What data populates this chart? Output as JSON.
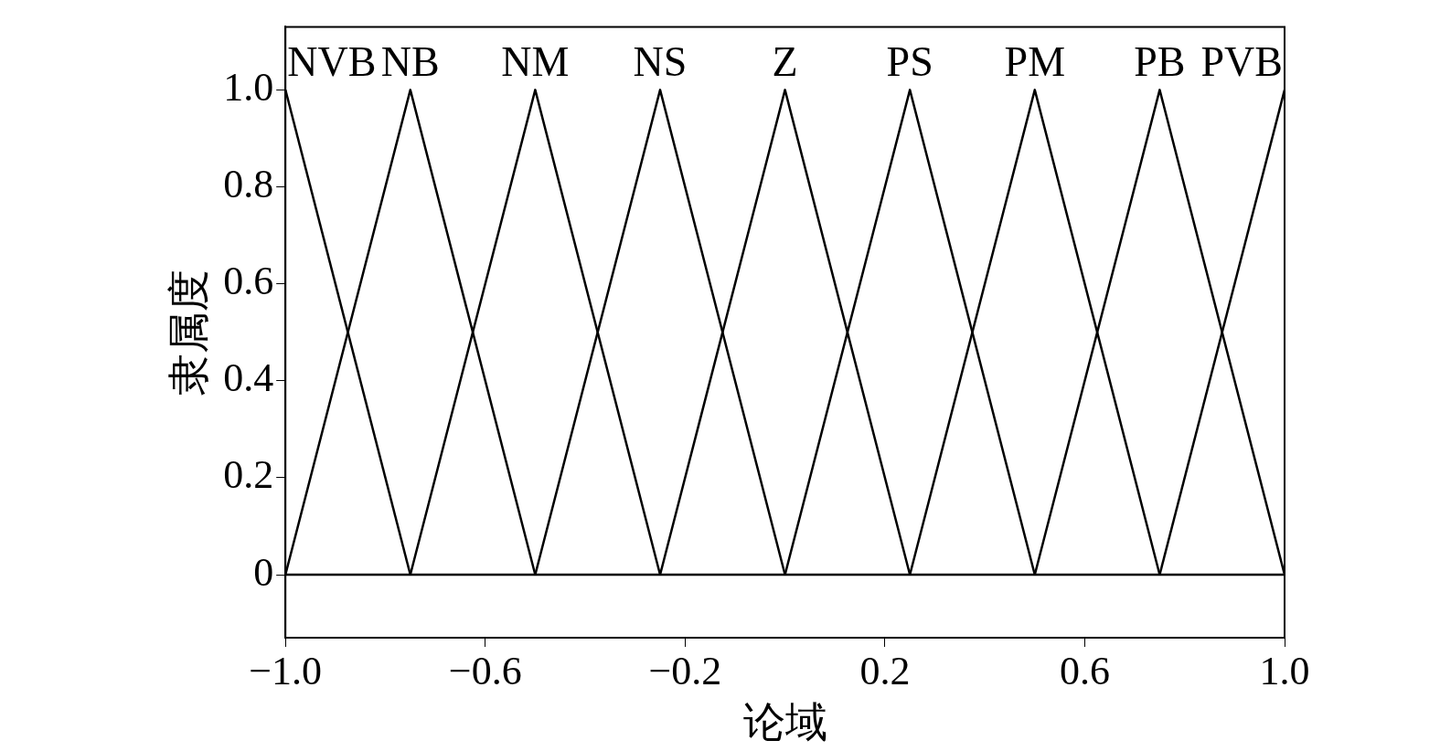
{
  "chart_data": {
    "type": "line",
    "xlabel": "论域",
    "ylabel": "隶属度",
    "xlim": [
      -1,
      1
    ],
    "xticks": [
      {
        "value": -1,
        "label": "−1.0"
      },
      {
        "value": -0.6,
        "label": "−0.6"
      },
      {
        "value": -0.2,
        "label": "−0.2"
      },
      0.2,
      0.6,
      {
        "value": 1,
        "label": "1.0"
      }
    ],
    "ylim": [
      -0.13,
      1.13
    ],
    "yticks": [
      0,
      0.2,
      0.4,
      0.6,
      0.8,
      {
        "value": 1,
        "label": "1.0"
      }
    ],
    "grid": false,
    "legend": false,
    "marker": "none",
    "line_style": "solid",
    "ref_lines": [
      {
        "axis": "y",
        "value": 0,
        "color": "#000000"
      }
    ],
    "series": [
      {
        "name": "NVB",
        "color": "#000000",
        "x": [
          -1,
          -0.75
        ],
        "values": [
          1,
          0
        ]
      },
      {
        "name": "NB",
        "color": "#000000",
        "x": [
          -1,
          -0.75,
          -0.5
        ],
        "values": [
          0,
          1,
          0
        ]
      },
      {
        "name": "NM",
        "color": "#000000",
        "x": [
          -0.75,
          -0.5,
          -0.25
        ],
        "values": [
          0,
          1,
          0
        ]
      },
      {
        "name": "NS",
        "color": "#000000",
        "x": [
          -0.5,
          -0.25,
          0
        ],
        "values": [
          0,
          1,
          0
        ]
      },
      {
        "name": "Z",
        "color": "#000000",
        "x": [
          -0.25,
          0,
          0.25
        ],
        "values": [
          0,
          1,
          0
        ]
      },
      {
        "name": "PS",
        "color": "#000000",
        "x": [
          0,
          0.25,
          0.5
        ],
        "values": [
          0,
          1,
          0
        ]
      },
      {
        "name": "PM",
        "color": "#000000",
        "x": [
          0.25,
          0.5,
          0.75
        ],
        "values": [
          0,
          1,
          0
        ]
      },
      {
        "name": "PB",
        "color": "#000000",
        "x": [
          0.5,
          0.75,
          1
        ],
        "values": [
          0,
          1,
          0
        ]
      },
      {
        "name": "PVB",
        "color": "#000000",
        "x": [
          0.75,
          1
        ],
        "values": [
          0,
          1
        ]
      }
    ]
  }
}
